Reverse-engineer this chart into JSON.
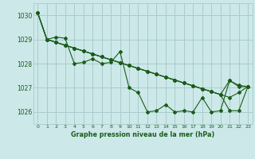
{
  "title": "Graphe pression niveau de la mer (hPa)",
  "bg_color": "#cce8e8",
  "grid_color": "#aacccc",
  "line_color": "#1a5c1a",
  "xlim": [
    -0.5,
    23.5
  ],
  "ylim": [
    1025.5,
    1030.5
  ],
  "yticks": [
    1026,
    1027,
    1028,
    1029,
    1030
  ],
  "xticks": [
    0,
    1,
    2,
    3,
    4,
    5,
    6,
    7,
    8,
    9,
    10,
    11,
    12,
    13,
    14,
    15,
    16,
    17,
    18,
    19,
    20,
    21,
    22,
    23
  ],
  "series": [
    [
      1030.1,
      1029.0,
      1029.1,
      1029.05,
      1028.0,
      1028.05,
      1028.2,
      1028.0,
      1028.05,
      1028.5,
      1027.0,
      1026.8,
      1026.0,
      1026.05,
      1026.3,
      1026.0,
      1026.05,
      1026.0,
      1026.6,
      1026.0,
      1026.05,
      1027.3,
      1027.05,
      1027.05
    ],
    [
      1030.1,
      1029.0,
      1028.88,
      1028.76,
      1028.64,
      1028.52,
      1028.4,
      1028.28,
      1028.16,
      1028.04,
      1027.92,
      1027.8,
      1027.68,
      1027.56,
      1027.44,
      1027.32,
      1027.2,
      1027.08,
      1026.96,
      1026.84,
      1026.72,
      1026.6,
      1026.8,
      1027.05
    ],
    [
      1030.1,
      1029.0,
      1028.88,
      1028.76,
      1028.64,
      1028.52,
      1028.4,
      1028.28,
      1028.16,
      1028.04,
      1027.92,
      1027.8,
      1027.68,
      1027.56,
      1027.44,
      1027.32,
      1027.2,
      1027.08,
      1026.96,
      1026.84,
      1026.72,
      1027.3,
      1027.1,
      1027.05
    ],
    [
      1030.1,
      1029.0,
      1028.88,
      1028.76,
      1028.64,
      1028.52,
      1028.4,
      1028.28,
      1028.16,
      1028.04,
      1027.92,
      1027.8,
      1027.68,
      1027.56,
      1027.44,
      1027.32,
      1027.2,
      1027.08,
      1026.96,
      1026.84,
      1026.72,
      1026.05,
      1026.05,
      1027.05
    ]
  ]
}
